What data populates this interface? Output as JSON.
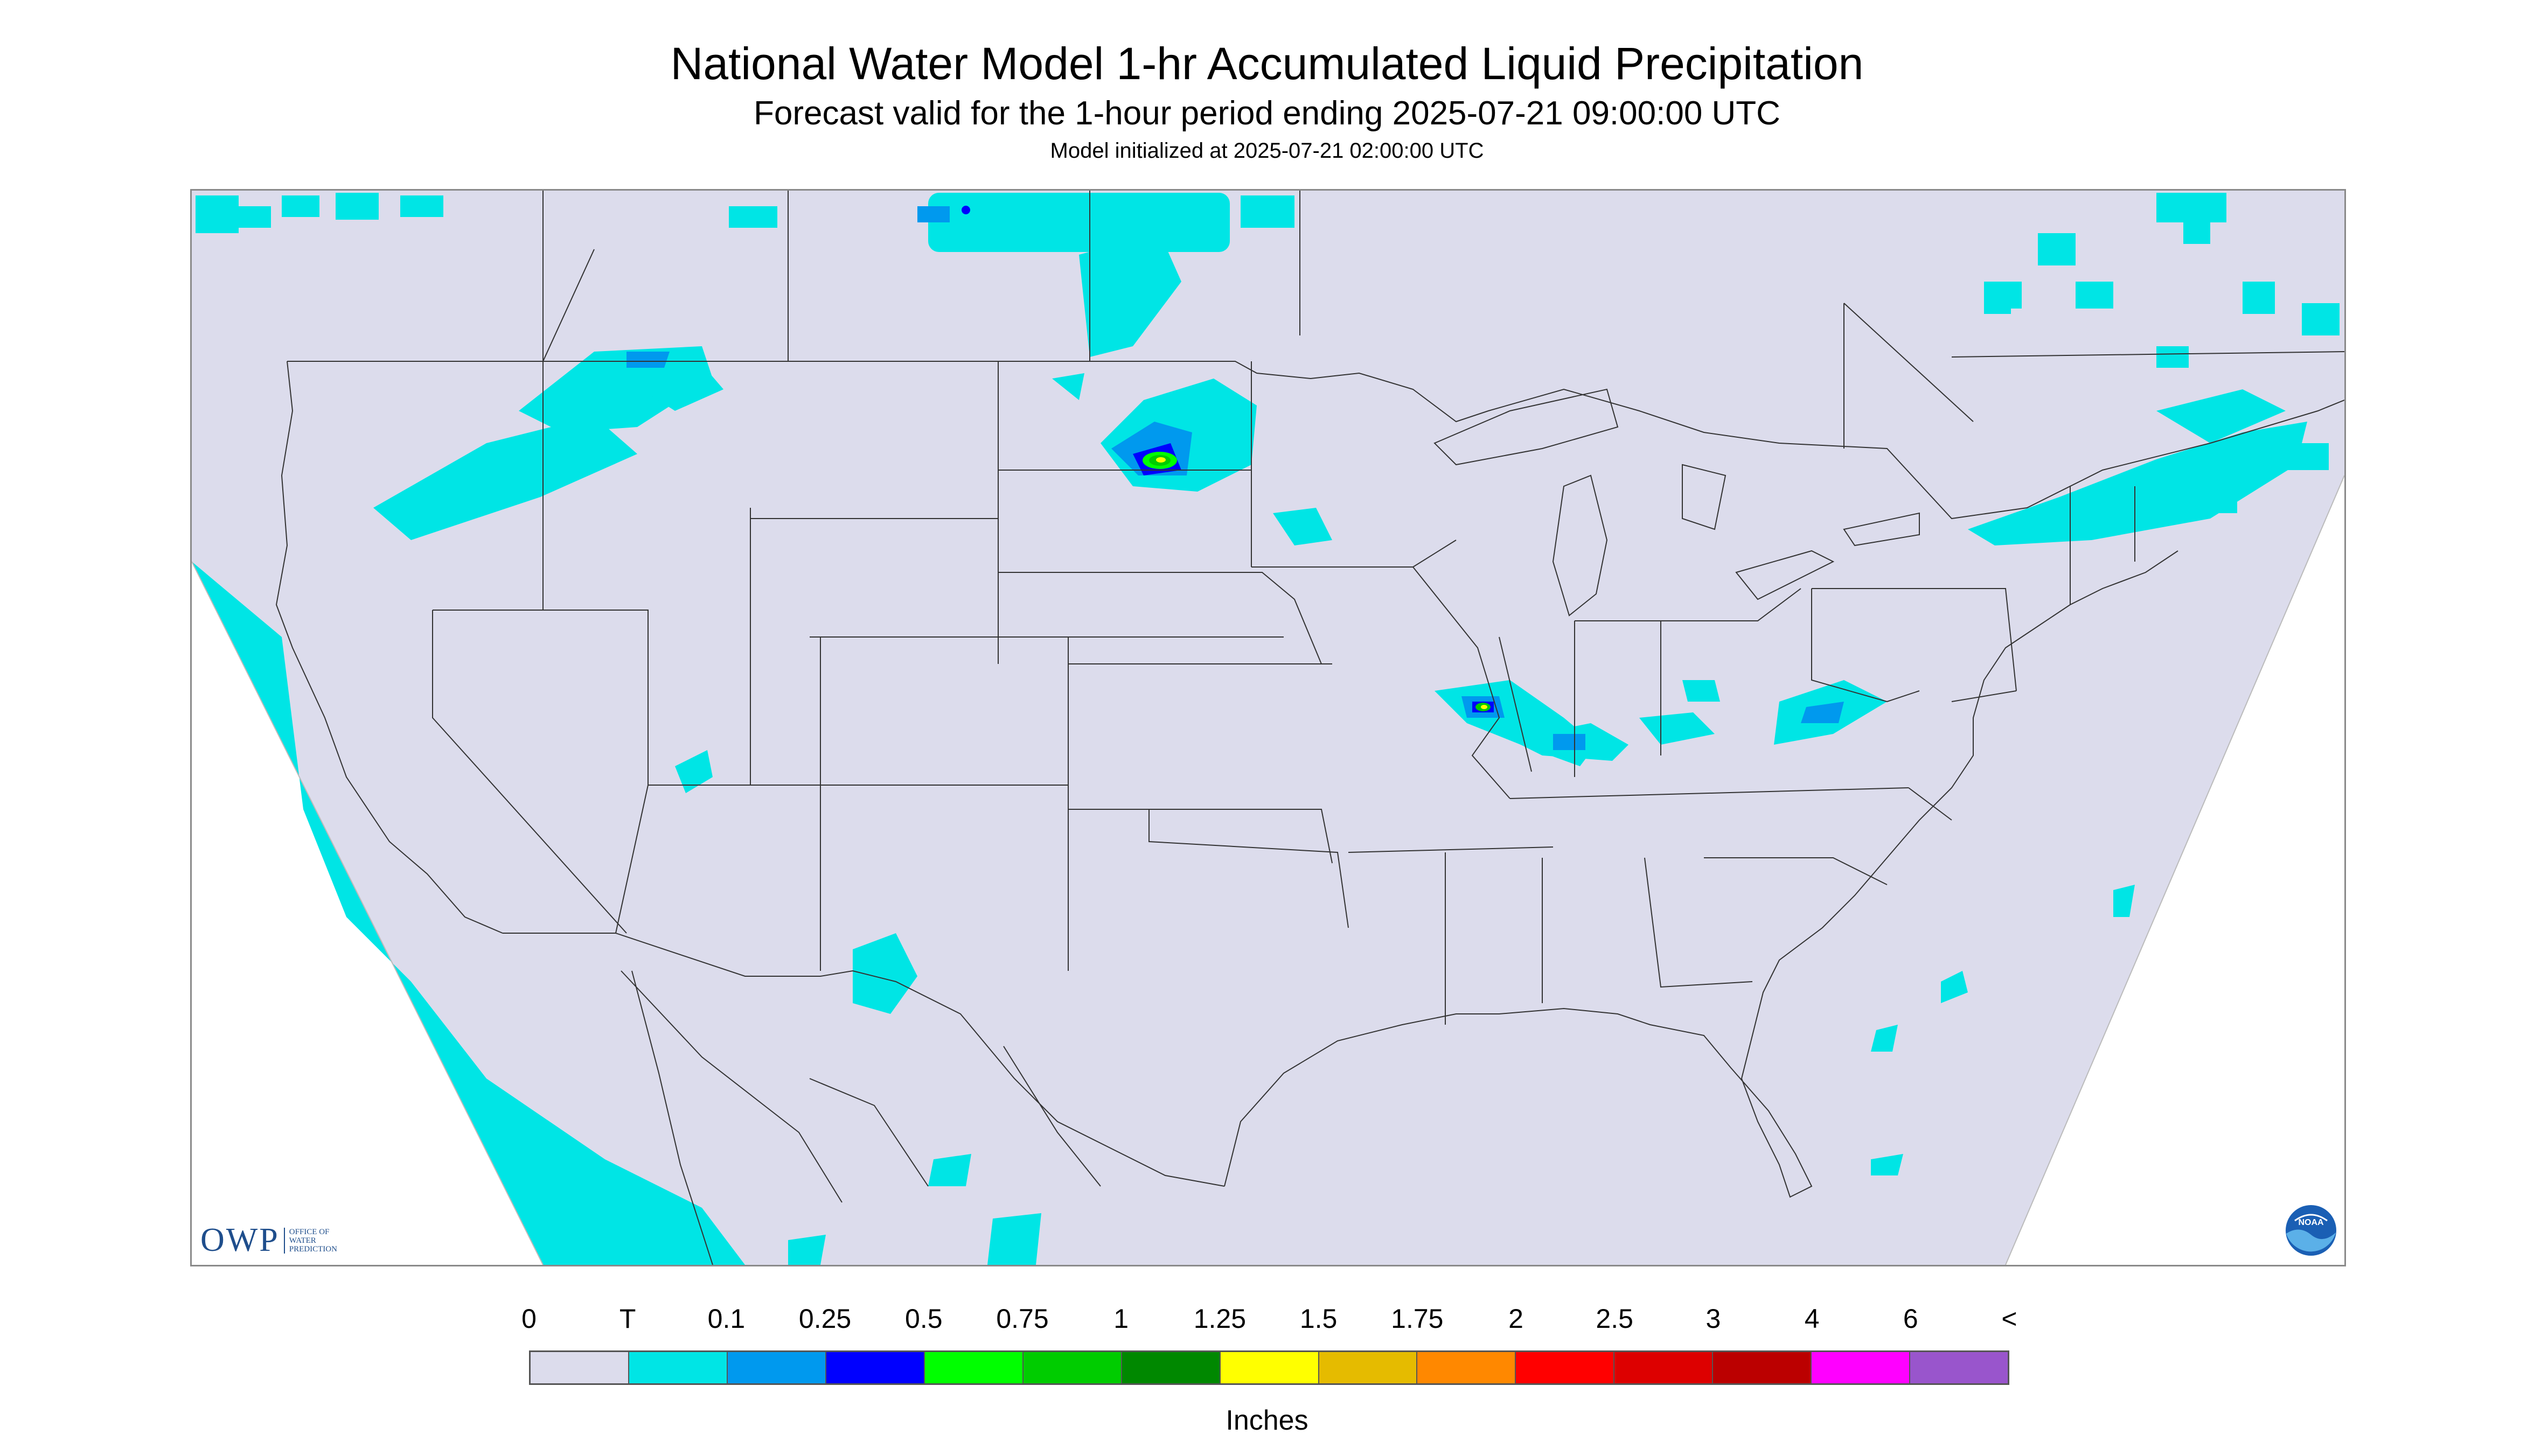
{
  "header": {
    "title": "National Water Model 1-hr Accumulated Liquid Precipitation",
    "subtitle": "Forecast valid for the 1-hour period ending 2025-07-21 09:00:00 UTC",
    "init_line": "Model initialized at 2025-07-21 02:00:00 UTC"
  },
  "map": {
    "region": "Contiguous United States",
    "background_color": "#dcdcec",
    "border_color": "#333333",
    "outside_domain_color": "#ffffff"
  },
  "logos": {
    "owp_mark": "OWP",
    "owp_text": [
      "Office of",
      "Water",
      "Prediction"
    ],
    "noaa_text": "NOAA"
  },
  "legend": {
    "tick_labels": [
      "0",
      "T",
      "0.1",
      "0.25",
      "0.5",
      "0.75",
      "1",
      "1.25",
      "1.5",
      "1.75",
      "2",
      "2.5",
      "3",
      "4",
      "6",
      "<"
    ],
    "colors": [
      "#dcdcec",
      "#00e5e5",
      "#0099ee",
      "#0000ff",
      "#00ff00",
      "#00cc00",
      "#008800",
      "#ffff00",
      "#e5bb00",
      "#ff8800",
      "#ff0000",
      "#dd0000",
      "#bb0000",
      "#ff00ff",
      "#9955cc"
    ],
    "units": "Inches"
  },
  "chart_data": {
    "type": "heatmap",
    "title": "National Water Model 1-hr Accumulated Liquid Precipitation",
    "subtitle": "Forecast valid for the 1-hour period ending 2025-07-21 09:00:00 UTC",
    "colorbar_label": "Inches",
    "bins": [
      "0",
      "T",
      "0.1",
      "0.25",
      "0.5",
      "0.75",
      "1",
      "1.25",
      "1.5",
      "1.75",
      "2",
      "2.5",
      "3",
      "4",
      "6",
      "<"
    ],
    "notable_maxima_category": "0.75-1.25",
    "notable_areas": [
      "North Dakota",
      "Illinois",
      "West Virginia",
      "Pacific coast"
    ]
  }
}
